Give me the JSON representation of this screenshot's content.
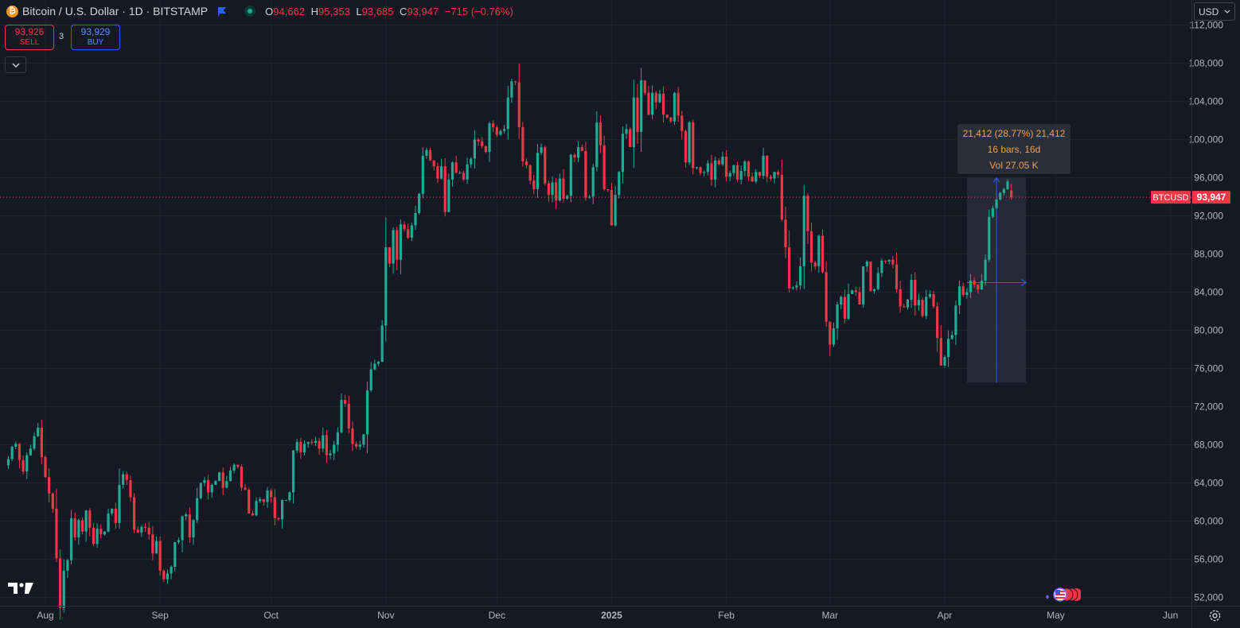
{
  "header": {
    "symbol_title": "Bitcoin / U.S. Dollar · 1D · BITSTAMP",
    "logo_glyph": "₿",
    "ohlc": {
      "o_label": "O",
      "o": "94,662",
      "h_label": "H",
      "h": "95,353",
      "l_label": "L",
      "l": "93,685",
      "c_label": "C",
      "c": "93,947",
      "change": "−715 (−0.76%)"
    }
  },
  "trade": {
    "sell_price": "93,926",
    "sell_label": "SELL",
    "buy_price": "93,929",
    "buy_label": "BUY",
    "spread": "3"
  },
  "currency": "USD",
  "measure": {
    "line1": "21,412 (28.77%) 21,412",
    "line2": "16 bars, 16d",
    "line3": "Vol 27.05 K"
  },
  "price_tag": {
    "symbol": "BTCUSD",
    "value": "93,947"
  },
  "colors": {
    "up": "#22ab94",
    "down": "#f23645",
    "bg": "#151924",
    "grid": "#1e222d",
    "measure": "#2962ff"
  },
  "icons": {
    "logo": "tradingview-logo-icon",
    "flag": "flag-icon",
    "settings": "gear-icon",
    "events": "economic-events-icon"
  },
  "chart_data": {
    "type": "candlestick",
    "ylim": [
      50800,
      113200
    ],
    "y_ticks": [
      52000,
      56000,
      60000,
      64000,
      68000,
      72000,
      76000,
      80000,
      84000,
      88000,
      92000,
      96000,
      100000,
      104000,
      108000,
      112000
    ],
    "y_tick_labels": [
      "52,000",
      "56,000",
      "60,000",
      "64,000",
      "68,000",
      "72,000",
      "76,000",
      "80,000",
      "84,000",
      "88,000",
      "92,000",
      "96,000",
      "100,000",
      "104,000",
      "108,000",
      "112,000"
    ],
    "x_labels": [
      "Aug",
      "Sep",
      "Oct",
      "Nov",
      "Dec",
      "2025",
      "Feb",
      "Mar",
      "Apr",
      "May",
      "Jun"
    ],
    "x_label_dates": [
      "2024-08-01",
      "2024-09-01",
      "2024-10-01",
      "2024-11-01",
      "2024-12-01",
      "2025-01-01",
      "2025-02-01",
      "2025-03-01",
      "2025-04-01",
      "2025-05-01",
      "2025-06-01"
    ],
    "first_date": "2024-07-22",
    "last_close": 93947,
    "measure": {
      "start_date": "2025-04-07",
      "end_date": "2025-04-23",
      "low": 74500,
      "high": 96000,
      "mid": 85000
    },
    "closes": [
      66500,
      67800,
      68100,
      66400,
      65200,
      66900,
      67600,
      68900,
      69800,
      66700,
      64600,
      62900,
      61300,
      56100,
      50900,
      54800,
      55900,
      60300,
      58300,
      60100,
      58900,
      61100,
      59300,
      57600,
      59200,
      58600,
      58900,
      60800,
      61300,
      59800,
      63800,
      64900,
      64300,
      62500,
      59100,
      58800,
      59400,
      59300,
      58600,
      56600,
      57900,
      54800,
      53900,
      54500,
      55200,
      57800,
      58000,
      60500,
      60700,
      58300,
      60100,
      62400,
      64000,
      64300,
      63000,
      63800,
      64200,
      65100,
      63500,
      64200,
      65300,
      65900,
      65700,
      63500,
      63300,
      60800,
      60600,
      62100,
      62300,
      62000,
      63200,
      62500,
      60300,
      60200,
      62200,
      62200,
      63000,
      67400,
      68300,
      67200,
      68100,
      68300,
      68200,
      68400,
      67600,
      69000,
      66900,
      67100,
      68000,
      69300,
      72700,
      72300,
      69700,
      68100,
      67800,
      68000,
      69100,
      73700,
      75900,
      76500,
      76700,
      80500,
      88700,
      87000,
      90500,
      87400,
      91100,
      90600,
      89700,
      91000,
      92300,
      94300,
      98300,
      98900,
      97800,
      97200,
      95900,
      97200,
      92400,
      95800,
      97600,
      96500,
      96500,
      95800,
      97400,
      98000,
      100000,
      99800,
      99300,
      98700,
      101700,
      101300,
      100500,
      100900,
      101100,
      104400,
      106100,
      106000,
      101300,
      97700,
      97300,
      95700,
      94800,
      98600,
      99200,
      95400,
      94200,
      95500,
      93600,
      95900,
      93800,
      94100,
      98400,
      98100,
      99200,
      98800,
      93900,
      94000,
      97100,
      101800,
      99400,
      94800,
      94700,
      91000,
      94200,
      96600,
      100600,
      101100,
      99200,
      104400,
      100800,
      106200,
      104900,
      102600,
      104900,
      103900,
      104800,
      102600,
      102300,
      101900,
      104900,
      102500,
      100900,
      97600,
      101800,
      97000,
      97100,
      96500,
      96600,
      97500,
      95800,
      97800,
      97400,
      98200,
      96100,
      96500,
      97300,
      95800,
      96700,
      97700,
      96100,
      95600,
      96600,
      96200,
      98300,
      96100,
      95900,
      96600,
      96300,
      91600,
      88700,
      84400,
      84500,
      84700,
      86700,
      94100,
      90400,
      87100,
      86700,
      89900,
      86100,
      80900,
      78500,
      80200,
      82700,
      83500,
      81200,
      83800,
      84200,
      84000,
      82700,
      86700,
      87200,
      84100,
      84300,
      86000,
      87300,
      87200,
      87400,
      86900,
      84300,
      82500,
      82400,
      83200,
      85300,
      82600,
      83200,
      81500,
      83500,
      83800,
      82500,
      79200,
      76300,
      77200,
      79100,
      79500,
      82600,
      84600,
      83700,
      84000,
      85200,
      84800,
      84300,
      85200,
      87400,
      91900,
      92800,
      93700,
      94400,
      94800,
      95600,
      93947
    ]
  }
}
